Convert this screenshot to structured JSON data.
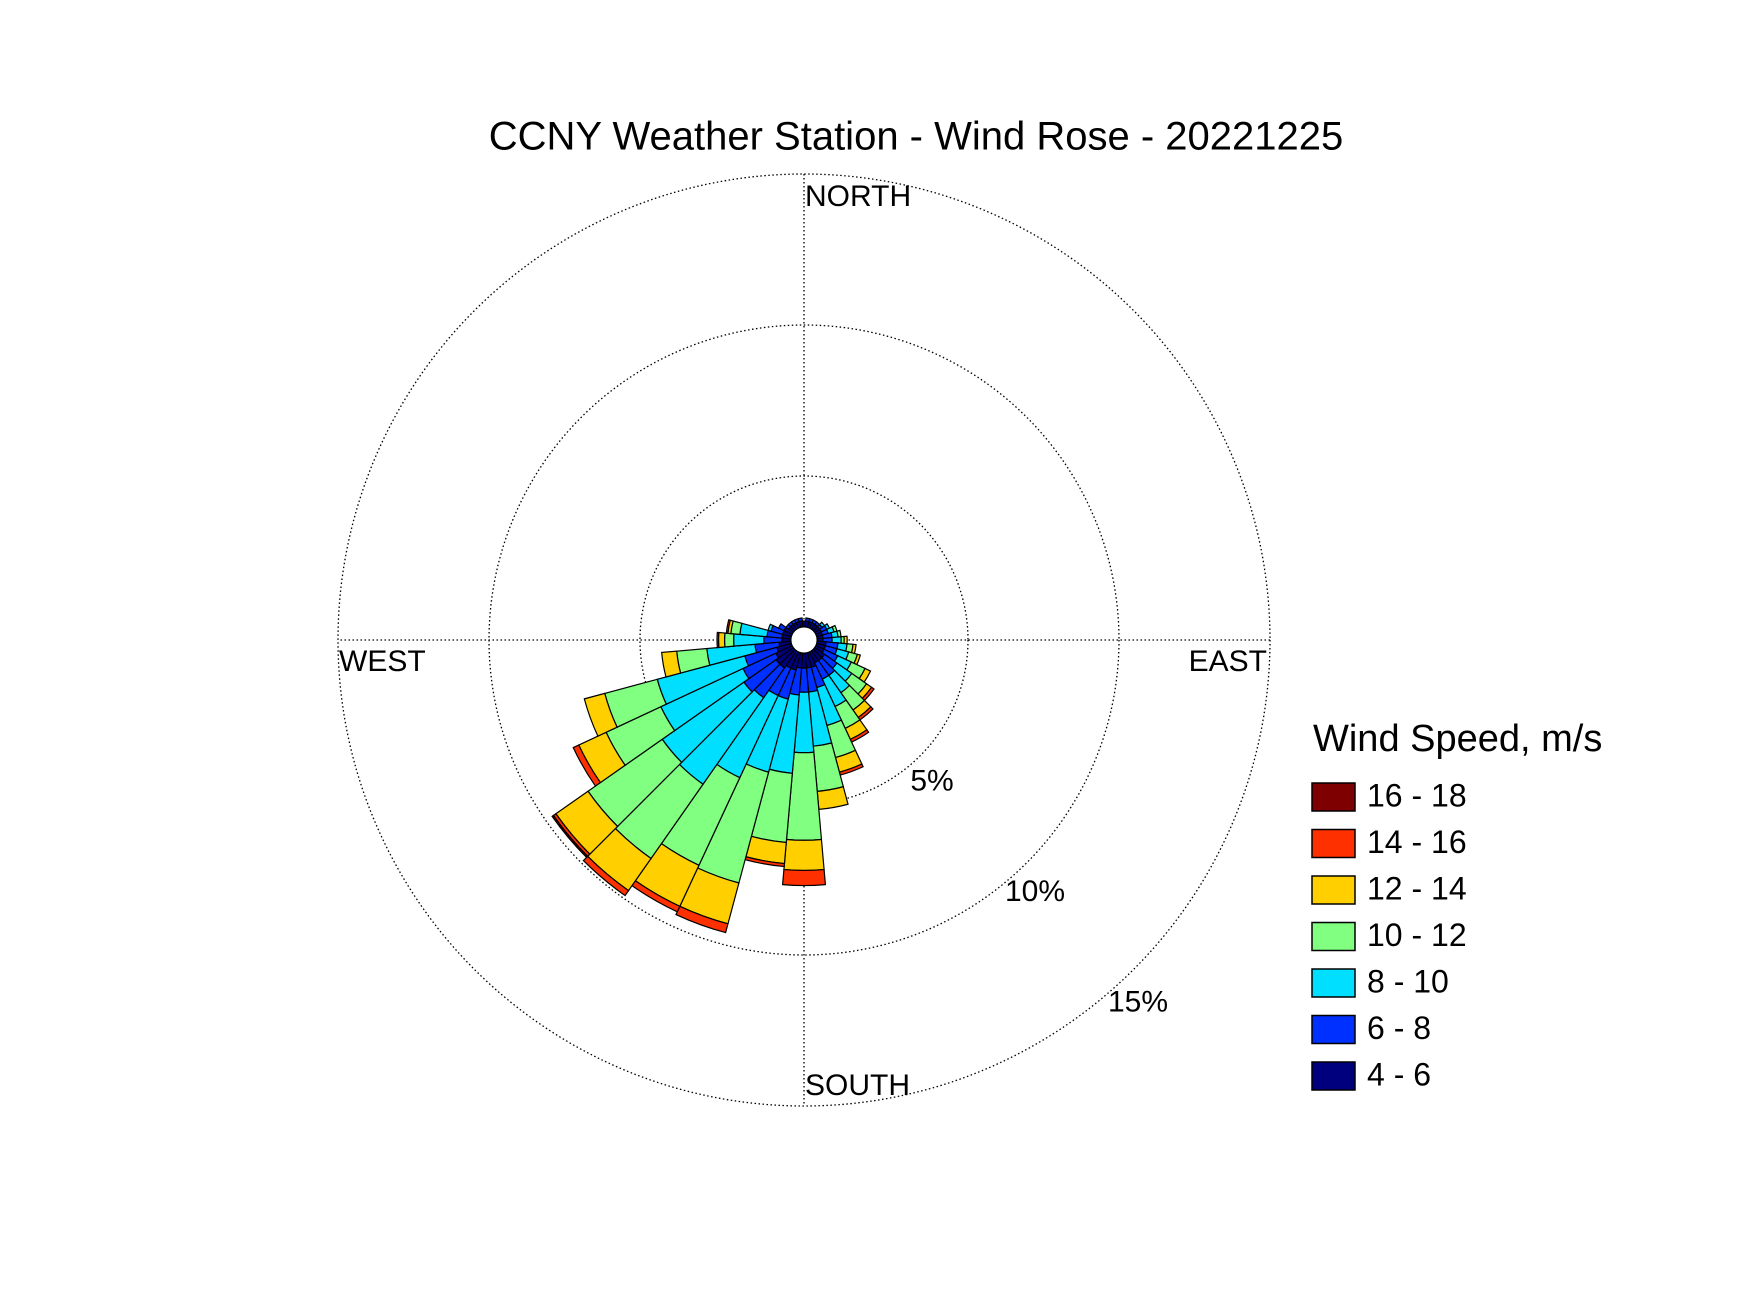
{
  "chart_data": {
    "type": "windrose",
    "title": "CCNY Weather Station - Wind Rose - 20221225",
    "legend_title": "Wind Speed, m/s",
    "direction_labels": {
      "north": "NORTH",
      "east": "EAST",
      "south": "SOUTH",
      "west": "WEST"
    },
    "directions": [
      0,
      10,
      20,
      30,
      40,
      50,
      60,
      70,
      80,
      90,
      100,
      110,
      120,
      130,
      140,
      150,
      160,
      170,
      180,
      190,
      200,
      210,
      220,
      230,
      240,
      250,
      260,
      270,
      280,
      290,
      300,
      310,
      320,
      330,
      340,
      350
    ],
    "rlim": [
      0,
      15
    ],
    "rticks": [
      {
        "value": 5,
        "label": "5%"
      },
      {
        "value": 10,
        "label": "10%"
      },
      {
        "value": 15,
        "label": "15%"
      }
    ],
    "grid": true,
    "series": [
      {
        "name": "4 - 6",
        "color": "#00007f",
        "values": [
          0.2,
          0.2,
          0.2,
          0.2,
          0.2,
          0.2,
          0.2,
          0.2,
          0.2,
          0.2,
          0.3,
          0.3,
          0.3,
          0.4,
          0.4,
          0.4,
          0.5,
          0.5,
          0.5,
          0.5,
          0.6,
          0.6,
          0.7,
          0.7,
          0.6,
          0.5,
          0.4,
          0.3,
          0.3,
          0.3,
          0.3,
          0.2,
          0.2,
          0.2,
          0.2,
          0.2
        ]
      },
      {
        "name": "6 - 8",
        "color": "#0030ff",
        "values": [
          0,
          0.1,
          0.1,
          0.1,
          0.1,
          0.1,
          0.2,
          0.2,
          0.3,
          0.3,
          0.4,
          0.4,
          0.5,
          0.5,
          0.6,
          0.6,
          0.7,
          0.8,
          0.8,
          0.9,
          1.0,
          1.0,
          1.2,
          1.3,
          1.2,
          1.1,
          0.8,
          0.6,
          0.5,
          0.4,
          0.2,
          0.1,
          0.1,
          0.1,
          0.1,
          0.1
        ]
      },
      {
        "name": "8 - 10",
        "color": "#00dfff",
        "values": [
          0,
          0,
          0,
          0,
          0,
          0.1,
          0.1,
          0.2,
          0.2,
          0.3,
          0.3,
          0.4,
          0.5,
          0.6,
          0.7,
          1.0,
          1.3,
          1.8,
          2.0,
          2.6,
          2.5,
          3.0,
          3.5,
          3.3,
          3.0,
          3.0,
          1.6,
          1.0,
          0.9,
          0.1,
          0,
          0,
          0,
          0,
          0,
          0
        ]
      },
      {
        "name": "10 - 12",
        "color": "#80ff80",
        "values": [
          0,
          0,
          0,
          0,
          0,
          0,
          0,
          0.1,
          0.1,
          0.1,
          0.2,
          0.3,
          0.5,
          0.6,
          0.7,
          0.8,
          1.1,
          1.5,
          2.9,
          2.3,
          3.8,
          3.2,
          3.0,
          3.0,
          2.0,
          1.8,
          1.0,
          0.3,
          0.3,
          0,
          0,
          0,
          0,
          0,
          0,
          0
        ]
      },
      {
        "name": "12 - 14",
        "color": "#ffcf00",
        "values": [
          0,
          0,
          0,
          0,
          0,
          0,
          0,
          0,
          0,
          0.1,
          0.1,
          0.1,
          0.2,
          0.2,
          0.3,
          0.4,
          0.5,
          0.6,
          1.0,
          0.7,
          1.4,
          1.5,
          1.3,
          1.3,
          1.0,
          0.7,
          0.5,
          0.2,
          0.1,
          0,
          0,
          0,
          0,
          0,
          0,
          0
        ]
      },
      {
        "name": "14 - 16",
        "color": "#ff3000",
        "values": [
          0,
          0,
          0,
          0,
          0,
          0,
          0,
          0,
          0,
          0,
          0,
          0,
          0,
          0.1,
          0.1,
          0.1,
          0.1,
          0,
          0.5,
          0.1,
          0.3,
          0.2,
          0.2,
          0.1,
          0.2,
          0,
          0,
          0.05,
          0.05,
          0,
          0,
          0,
          0,
          0,
          0,
          0
        ]
      },
      {
        "name": "16 - 18",
        "color": "#7f0000",
        "values": [
          0,
          0,
          0,
          0,
          0,
          0,
          0,
          0,
          0,
          0,
          0,
          0,
          0,
          0,
          0,
          0,
          0,
          0,
          0,
          0,
          0,
          0,
          0,
          0.05,
          0,
          0,
          0,
          0,
          0,
          0,
          0,
          0,
          0,
          0,
          0,
          0
        ]
      }
    ]
  }
}
